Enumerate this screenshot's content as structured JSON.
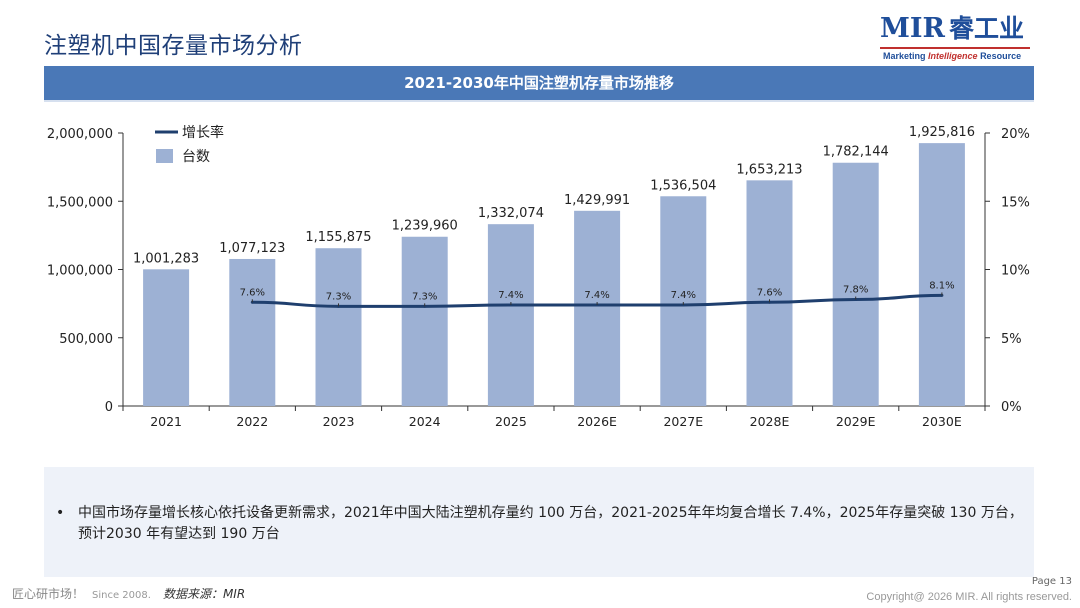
{
  "page_title": "注塑机中国存量市场分析",
  "logo": {
    "main": "MIR",
    "cn": "睿工业",
    "sub_a": "Marketing",
    "sub_b": "Intelligence",
    "sub_c": "Resource"
  },
  "banner": "2021-2030年中国注塑机存量市场推移",
  "chart_data": {
    "type": "bar",
    "categories": [
      "2021",
      "2022",
      "2023",
      "2024",
      "2025",
      "2026E",
      "2027E",
      "2028E",
      "2029E",
      "2030E"
    ],
    "series": [
      {
        "name": "台数",
        "type": "bar",
        "color": "#9db1d4",
        "values": [
          1001283,
          1077123,
          1155875,
          1239960,
          1332074,
          1429991,
          1536504,
          1653213,
          1782144,
          1925816
        ],
        "labels": [
          "1,001,283",
          "1,077,123",
          "1,155,875",
          "1,239,960",
          "1,332,074",
          "1,429,991",
          "1,536,504",
          "1,653,213",
          "1,782,144",
          "1,925,816"
        ]
      },
      {
        "name": "增长率",
        "type": "line",
        "color": "#1f3f6e",
        "values": [
          null,
          7.6,
          7.3,
          7.3,
          7.4,
          7.4,
          7.4,
          7.6,
          7.8,
          8.1
        ],
        "labels": [
          "",
          "7.6%",
          "7.3%",
          "7.3%",
          "7.4%",
          "7.4%",
          "7.4%",
          "7.6%",
          "7.8%",
          "8.1%"
        ]
      }
    ],
    "y_left": {
      "ylim": [
        0,
        2000000
      ],
      "ticks": [
        "0",
        "500,000",
        "1,000,000",
        "1,500,000",
        "2,000,000"
      ],
      "tick_values": [
        0,
        500000,
        1000000,
        1500000,
        2000000
      ]
    },
    "y_right": {
      "ylim": [
        0,
        20
      ],
      "ticks": [
        "0%",
        "5%",
        "10%",
        "15%",
        "20%"
      ],
      "tick_values": [
        0,
        5,
        10,
        15,
        20
      ]
    },
    "legend_position": "top-left",
    "grid": false
  },
  "note": "中国市场存量增长核心依托设备更新需求，2021年中国大陆注塑机存量约 100 万台，2021-2025年年均复合增长 7.4%，2025年存量突破 130 万台，预计2030 年有望达到 190 万台",
  "bullet": "•",
  "footer": {
    "slogan": "匠心研市场！",
    "since": "Since 2008.",
    "source": "数据来源：MIR",
    "page": "Page 13",
    "copyright": "Copyright@ 2026 MIR. All rights reserved."
  }
}
